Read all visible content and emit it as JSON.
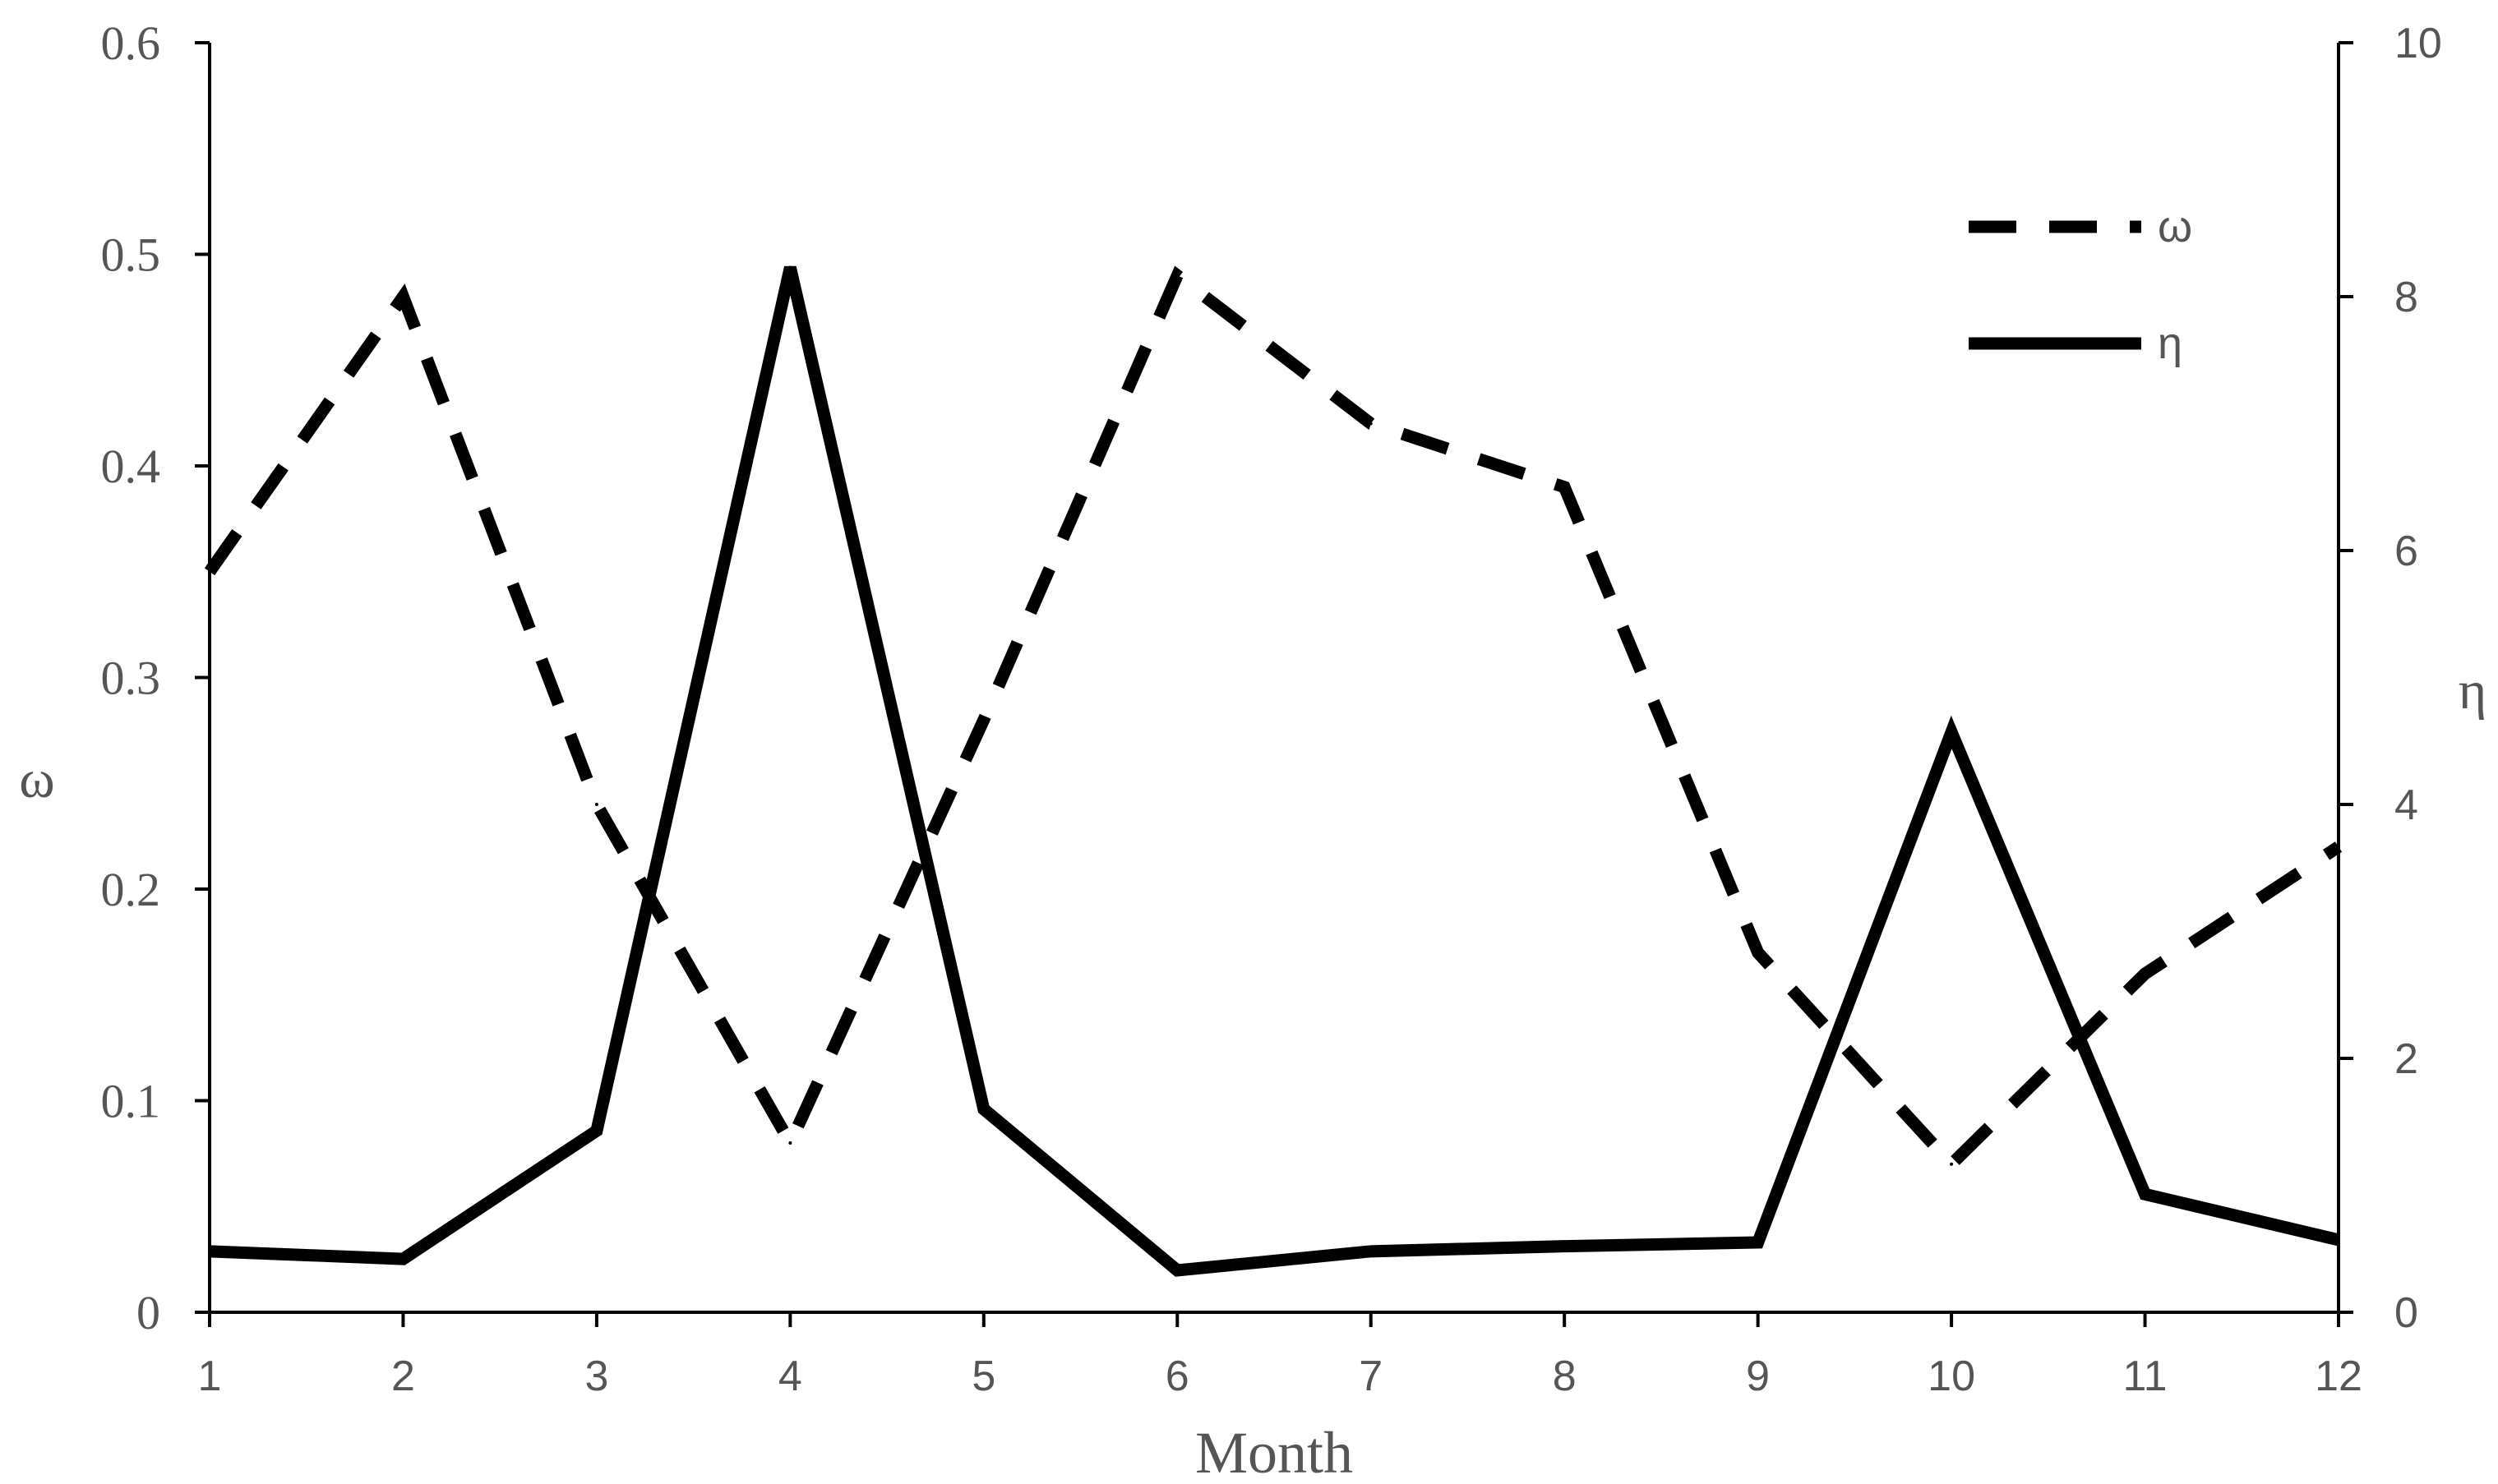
{
  "chart_data": {
    "type": "line",
    "title": "",
    "xlabel": "Month",
    "ylabel": "ω",
    "ylabel_right": "η",
    "x": [
      1,
      2,
      3,
      4,
      5,
      6,
      7,
      8,
      9,
      10,
      11,
      12
    ],
    "x_tick_labels": [
      "1",
      "2",
      "3",
      "4",
      "5",
      "6",
      "7",
      "8",
      "9",
      "10",
      "11",
      "12"
    ],
    "ylim": [
      0,
      0.6
    ],
    "ylim_right": [
      0,
      10
    ],
    "y_ticks": [
      "0",
      "0.1",
      "0.2",
      "0.3",
      "0.4",
      "0.5",
      "0.6"
    ],
    "y_ticks_right": [
      "0",
      "2",
      "4",
      "6",
      "8",
      "10"
    ],
    "grid": false,
    "legend_position": "top-right",
    "series": [
      {
        "name": "ω",
        "axis": "left",
        "style": "dashed",
        "color": "#000000",
        "values": [
          0.35,
          0.48,
          0.24,
          0.08,
          0.28,
          0.49,
          0.42,
          0.39,
          0.17,
          0.07,
          0.16,
          0.22
        ]
      },
      {
        "name": "η",
        "axis": "right",
        "style": "solid",
        "color": "#000000",
        "values": [
          0.48,
          0.42,
          1.43,
          8.23,
          1.6,
          0.33,
          0.48,
          0.52,
          0.55,
          4.57,
          0.93,
          0.57
        ]
      }
    ]
  }
}
